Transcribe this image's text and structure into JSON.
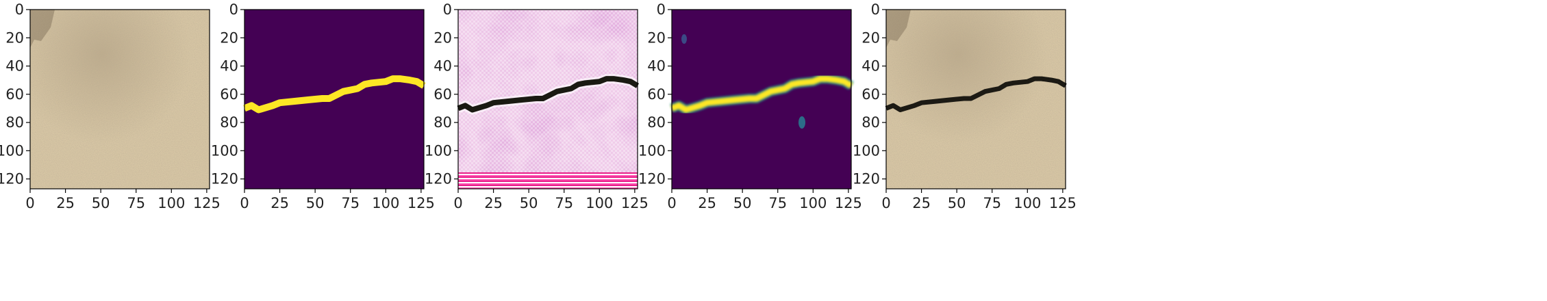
{
  "figure": {
    "panel_count": 5,
    "axes": {
      "y_ticks": [
        "0",
        "20",
        "40",
        "60",
        "80",
        "100",
        "120"
      ],
      "x_ticks": [
        "0",
        "25",
        "50",
        "75",
        "100",
        "125"
      ],
      "x_range": [
        0,
        127
      ],
      "y_range": [
        0,
        127
      ]
    },
    "panels": [
      {
        "id": "input-photo",
        "content": "sandy-texture-photo"
      },
      {
        "id": "ground-truth-mask",
        "content": "binary-mask",
        "colors": {
          "background": "#440154",
          "crack": "#fde725"
        }
      },
      {
        "id": "generated-image",
        "content": "pink-artifact-image-with-crack"
      },
      {
        "id": "predicted-mask",
        "content": "soft-mask",
        "colors": {
          "background": "#440154",
          "crack": "#fde725",
          "blob": "#2a9d8f"
        }
      },
      {
        "id": "overlay",
        "content": "photo-with-crack-overlay"
      }
    ],
    "crack_path": {
      "x": [
        0,
        5,
        10,
        20,
        25,
        35,
        45,
        55,
        60,
        70,
        80,
        85,
        90,
        100,
        105,
        110,
        117,
        122,
        127
      ],
      "y": [
        70,
        68,
        71,
        68,
        66,
        65,
        64,
        63,
        63,
        58,
        56,
        53,
        52,
        51,
        49,
        49,
        50,
        51,
        54
      ]
    }
  }
}
